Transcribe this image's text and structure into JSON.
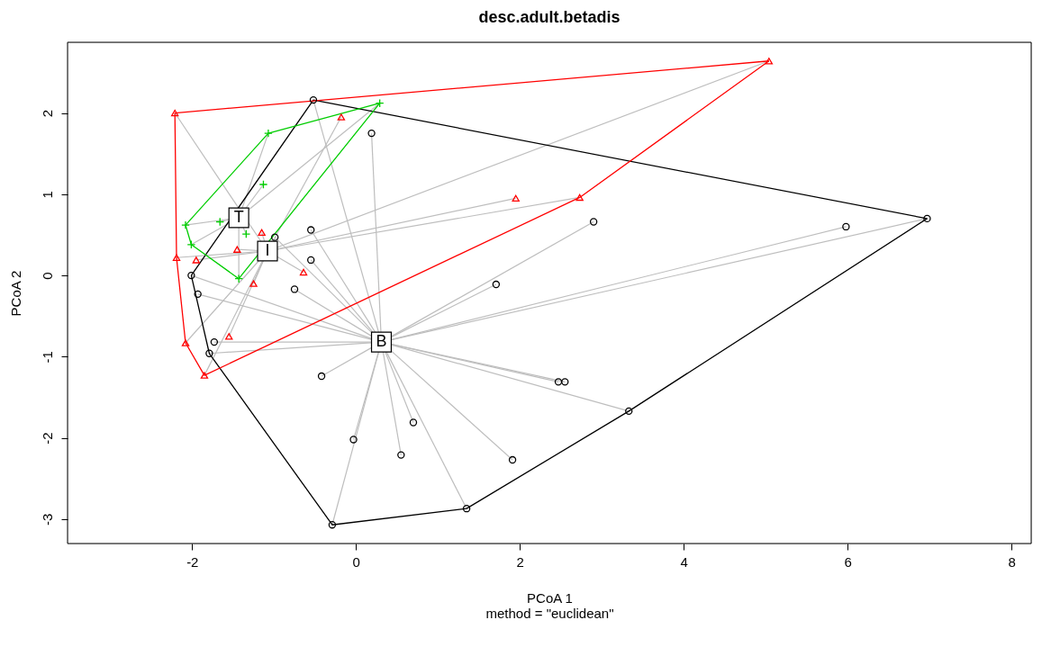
{
  "chart_data": {
    "type": "scatter",
    "title": "desc.adult.betadis",
    "xlabel": "PCoA 1",
    "ylabel": "PCoA 2",
    "annotations": [
      {
        "text": "B",
        "x": 0.31,
        "y": -0.82
      },
      {
        "text": "I",
        "x": -1.08,
        "y": 0.3
      },
      {
        "text": "T",
        "x": -1.43,
        "y": 0.71
      },
      "method = \"euclidean\""
    ],
    "series": [
      {
        "color": "#000000",
        "marker": "circle",
        "x": [
          -0.52,
          0.19,
          -0.55,
          -0.99,
          -0.55,
          -0.75,
          -2.01,
          -1.93,
          -1.73,
          -1.79,
          -0.42,
          -0.03,
          0.55,
          0.7,
          -0.29,
          1.35,
          1.91,
          1.71,
          2.9,
          2.47,
          2.55,
          3.33,
          5.98,
          6.97
        ],
        "values": [
          2.16,
          1.75,
          0.56,
          0.47,
          0.19,
          -0.17,
          0.0,
          -0.23,
          -0.82,
          -0.96,
          -1.24,
          -2.02,
          -2.21,
          -1.81,
          -3.07,
          -2.87,
          -2.27,
          -0.11,
          0.66,
          -1.31,
          -1.31,
          -1.67,
          0.6,
          0.7
        ]
      },
      {
        "color": "#ff0000",
        "marker": "triangle",
        "x": [
          5.04,
          -2.21,
          -0.18,
          1.95,
          2.73,
          -1.15,
          -1.45,
          -2.19,
          -1.95,
          -1.25,
          -0.64,
          -1.55,
          -2.08,
          -1.85
        ],
        "values": [
          2.64,
          2.0,
          1.95,
          0.95,
          0.96,
          0.53,
          0.32,
          0.22,
          0.19,
          -0.1,
          0.04,
          -0.75,
          -0.83,
          -1.23
        ]
      },
      {
        "color": "#00cd00",
        "marker": "cross",
        "x": [
          0.29,
          -1.07,
          -1.13,
          -1.66,
          -2.08,
          -2.01,
          -1.34,
          -1.43
        ],
        "values": [
          2.12,
          1.75,
          1.12,
          0.66,
          0.62,
          0.38,
          0.51,
          -0.04
        ]
      },
      {
        "type": "line",
        "color": "#000000",
        "marker": "none",
        "x": [
          -2.01,
          -0.52,
          6.97
        ],
        "values": [
          0.0,
          2.16,
          0.7
        ]
      },
      {
        "type": "line",
        "color": "#000000",
        "marker": "none",
        "x": [
          -2.01,
          -1.79,
          -0.29,
          1.35,
          3.33,
          6.97
        ],
        "values": [
          0.0,
          -0.96,
          -3.07,
          -2.87,
          -1.67,
          0.7
        ]
      },
      {
        "type": "line",
        "color": "#ff0000",
        "marker": "none",
        "x": [
          -2.21,
          5.04
        ],
        "values": [
          2.0,
          2.64
        ]
      },
      {
        "type": "line",
        "color": "#ff0000",
        "marker": "none",
        "x": [
          -2.21,
          -2.19,
          -2.08,
          -1.85,
          2.73,
          5.04
        ],
        "values": [
          2.0,
          0.22,
          -0.83,
          -1.23,
          0.96,
          2.64
        ]
      },
      {
        "type": "line",
        "color": "#00cd00",
        "marker": "none",
        "x": [
          -2.08,
          -1.07,
          0.29
        ],
        "values": [
          0.62,
          1.75,
          2.12
        ]
      },
      {
        "type": "line",
        "color": "#00cd00",
        "marker": "none",
        "x": [
          -2.08,
          -2.01,
          -1.43,
          0.29
        ],
        "values": [
          0.62,
          0.38,
          -0.04,
          2.12
        ]
      }
    ],
    "xlim": [
      -3.52,
      8.24
    ],
    "ylim": [
      -3.3,
      2.87
    ],
    "xticks": [
      -2,
      0,
      2,
      4,
      6,
      8
    ],
    "yticks": [
      -3,
      -2,
      -1,
      0,
      1,
      2
    ],
    "grid": false,
    "legend": false
  }
}
